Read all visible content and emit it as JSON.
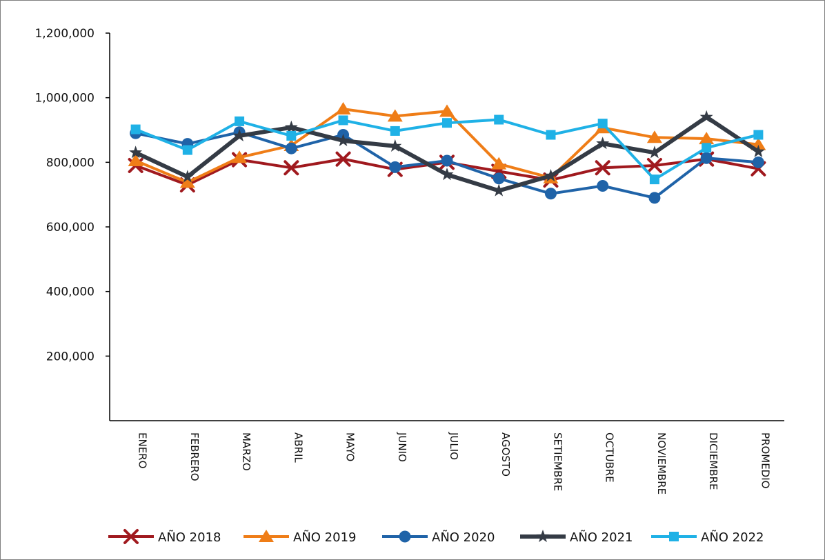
{
  "chart_data": {
    "type": "line",
    "title": "",
    "xlabel": "",
    "ylabel": "",
    "ylim": [
      0,
      1200000
    ],
    "yticks": [
      {
        "value": 200000,
        "label": "200,000"
      },
      {
        "value": 400000,
        "label": "400,000"
      },
      {
        "value": 600000,
        "label": "600,000"
      },
      {
        "value": 800000,
        "label": "800,000"
      },
      {
        "value": 1000000,
        "label": "1,000,000"
      },
      {
        "value": 1200000,
        "label": "1,200,000"
      }
    ],
    "categories": [
      "ENERO",
      "FEBRERO",
      "MARZO",
      "ABRIL",
      "MAYO",
      "JUNIO",
      "JULIO",
      "AGOSTO",
      "SETIEMBRE",
      "OCTUBRE",
      "NOVIEMBRE",
      "DICIEMBRE",
      "PROMEDIO"
    ],
    "grid": false,
    "legend_position": "bottom",
    "series": [
      {
        "name": "AÑO 2018",
        "color": "#a0191e",
        "marker": "x",
        "values": [
          790000,
          730000,
          808000,
          783000,
          810000,
          778000,
          800000,
          772000,
          745000,
          783000,
          790000,
          810000,
          780000
        ]
      },
      {
        "name": "AÑO 2019",
        "color": "#ef7d17",
        "marker": "triangle",
        "values": [
          805000,
          738000,
          815000,
          852000,
          965000,
          943000,
          958000,
          795000,
          752000,
          907000,
          877000,
          873000,
          855000
        ]
      },
      {
        "name": "AÑO 2020",
        "color": "#1f63a8",
        "marker": "circle",
        "values": [
          890000,
          857000,
          893000,
          843000,
          885000,
          785000,
          805000,
          750000,
          703000,
          727000,
          690000,
          813000,
          800000
        ]
      },
      {
        "name": "AÑO 2021",
        "color": "#343b45",
        "marker": "star",
        "values": [
          830000,
          755000,
          882000,
          908000,
          867000,
          850000,
          762000,
          712000,
          758000,
          858000,
          830000,
          940000,
          833000
        ]
      },
      {
        "name": "AÑO 2022",
        "color": "#1fb1e6",
        "marker": "square",
        "values": [
          902000,
          838000,
          927000,
          882000,
          930000,
          897000,
          922000,
          932000,
          885000,
          920000,
          747000,
          845000,
          885000
        ]
      }
    ]
  }
}
